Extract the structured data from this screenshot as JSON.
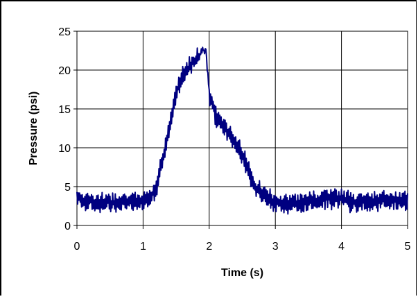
{
  "chart_data": {
    "type": "line",
    "title": "",
    "xlabel": "Time (s)",
    "ylabel": "Pressure (psi)",
    "xlim": [
      0,
      5
    ],
    "ylim": [
      0,
      25
    ],
    "xticks": [
      "0",
      "1",
      "2",
      "3",
      "4",
      "5"
    ],
    "yticks": [
      "0",
      "5",
      "10",
      "15",
      "20",
      "25"
    ],
    "grid": true,
    "legend": "none",
    "series_color": "#000080",
    "series": [
      {
        "x": [
          0.0,
          0.1,
          0.2,
          0.3,
          0.4,
          0.5,
          0.6,
          0.7,
          0.8,
          0.9,
          1.0,
          1.1,
          1.2,
          1.3,
          1.4,
          1.5,
          1.6,
          1.7,
          1.8,
          1.9,
          1.95,
          2.0,
          2.1,
          2.2,
          2.3,
          2.4,
          2.5,
          2.6,
          2.7,
          2.8,
          2.9,
          3.0,
          3.1,
          3.2,
          3.3,
          3.4,
          3.5,
          3.6,
          3.7,
          3.8,
          3.9,
          4.0,
          4.1,
          4.2,
          4.3,
          4.4,
          4.5,
          4.6,
          4.7,
          4.8,
          4.9,
          5.0
        ],
        "values": [
          3.5,
          3.3,
          3.1,
          2.9,
          2.9,
          3.0,
          3.0,
          3.0,
          3.0,
          3.1,
          3.2,
          3.4,
          5.0,
          8.5,
          12.5,
          17.0,
          19.5,
          20.5,
          21.5,
          22.5,
          22.6,
          17.0,
          14.0,
          13.0,
          12.0,
          10.5,
          9.0,
          7.0,
          5.0,
          4.0,
          3.3,
          3.0,
          2.9,
          2.8,
          2.8,
          2.9,
          3.0,
          3.2,
          3.3,
          3.5,
          3.5,
          3.4,
          3.2,
          3.0,
          3.0,
          3.0,
          3.1,
          3.2,
          3.3,
          3.3,
          3.3,
          3.2
        ]
      }
    ]
  }
}
